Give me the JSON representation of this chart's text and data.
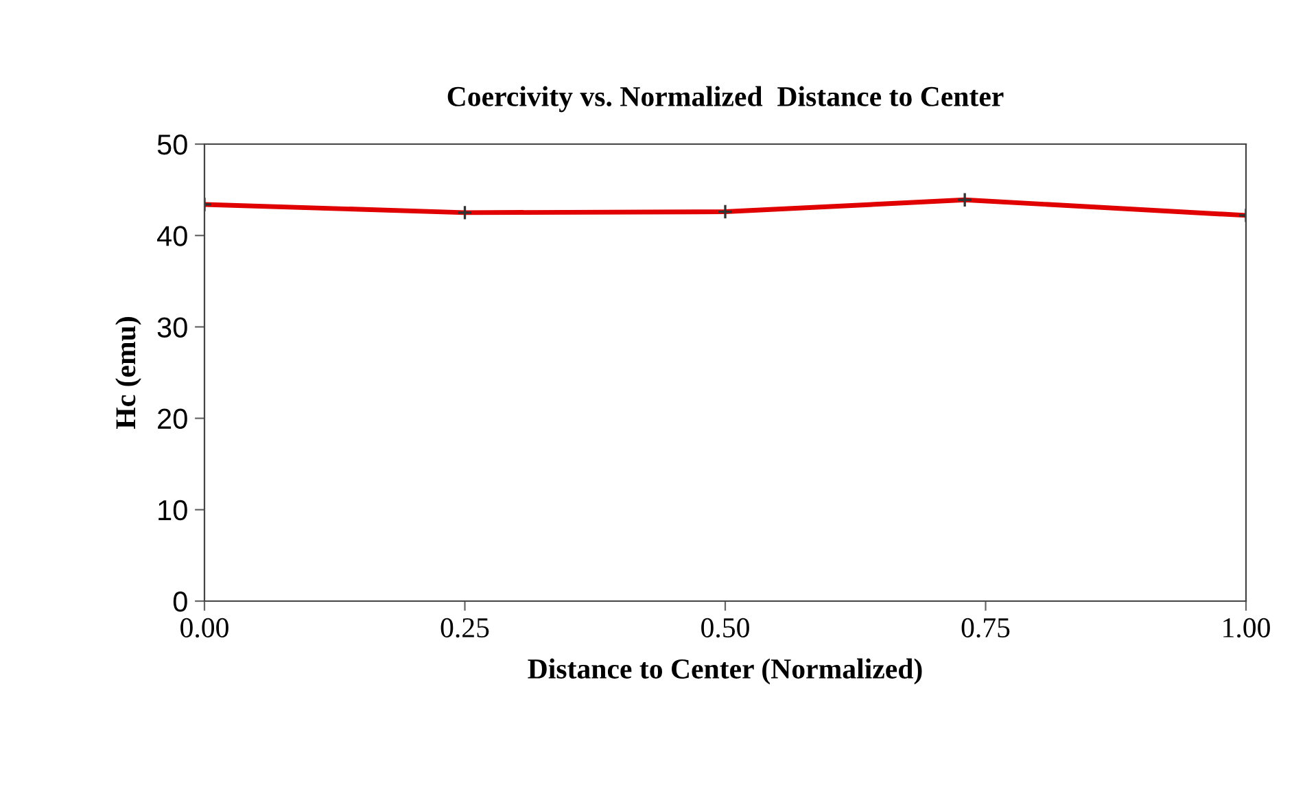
{
  "chart_data": {
    "type": "line",
    "title": "Coercivity vs. Normalized  Distance to Center",
    "xlabel": "Distance to Center (Normalized)",
    "ylabel": "Hc (emu)",
    "x": [
      0,
      0.25,
      0.5,
      0.73,
      1.0
    ],
    "series": [
      {
        "color": "#e00000",
        "values": [
          43.4,
          42.5,
          42.6,
          43.9,
          42.2
        ]
      }
    ],
    "xlim": [
      0,
      1
    ],
    "xticks": [
      {
        "value": 0,
        "label": "0.00"
      },
      {
        "value": 0.25,
        "label": "0.25"
      },
      {
        "value": 0.5,
        "label": "0.50"
      },
      {
        "value": 0.75,
        "label": "0.75"
      },
      {
        "value": 1,
        "label": "1.00"
      }
    ],
    "ylim": [
      0,
      50
    ],
    "yticks": [
      0,
      10,
      20,
      30,
      40,
      50
    ],
    "grid": false,
    "legend": false,
    "marker": "cross",
    "line_style": "solid"
  }
}
